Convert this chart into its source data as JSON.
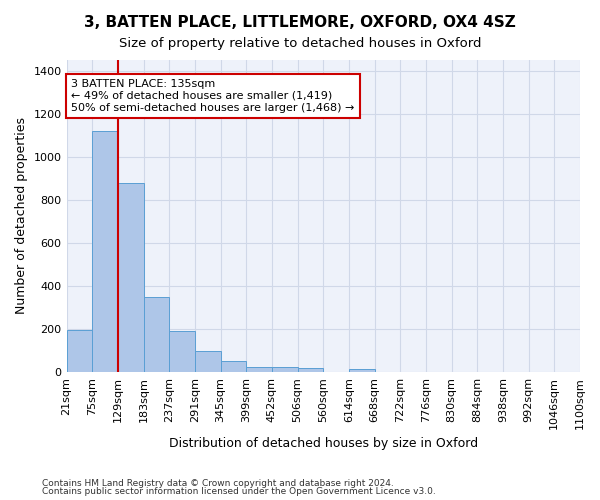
{
  "title": "3, BATTEN PLACE, LITTLEMORE, OXFORD, OX4 4SZ",
  "subtitle": "Size of property relative to detached houses in Oxford",
  "xlabel": "Distribution of detached houses by size in Oxford",
  "ylabel": "Number of detached properties",
  "footnote1": "Contains HM Land Registry data © Crown copyright and database right 2024.",
  "footnote2": "Contains public sector information licensed under the Open Government Licence v3.0.",
  "bin_labels": [
    "21sqm",
    "75sqm",
    "129sqm",
    "183sqm",
    "237sqm",
    "291sqm",
    "345sqm",
    "399sqm",
    "452sqm",
    "506sqm",
    "560sqm",
    "614sqm",
    "668sqm",
    "722sqm",
    "776sqm",
    "830sqm",
    "884sqm",
    "938sqm",
    "992sqm",
    "1046sqm",
    "1100sqm"
  ],
  "bar_heights": [
    197,
    1120,
    876,
    350,
    192,
    99,
    52,
    25,
    22,
    18,
    0,
    12,
    0,
    0,
    0,
    0,
    0,
    0,
    0,
    0
  ],
  "bar_color": "#aec6e8",
  "bar_edge_color": "#5a9fd4",
  "grid_color": "#d0d8e8",
  "background_color": "#eef2fa",
  "vline_x": 2.0,
  "vline_color": "#cc0000",
  "annotation_text": "3 BATTEN PLACE: 135sqm\n← 49% of detached houses are smaller (1,419)\n50% of semi-detached houses are larger (1,468) →",
  "annotation_box_color": "#ffffff",
  "annotation_box_edge": "#cc0000",
  "ylim": [
    0,
    1450
  ],
  "title_fontsize": 11,
  "subtitle_fontsize": 9.5,
  "axis_label_fontsize": 9,
  "tick_fontsize": 8,
  "annotation_fontsize": 8
}
